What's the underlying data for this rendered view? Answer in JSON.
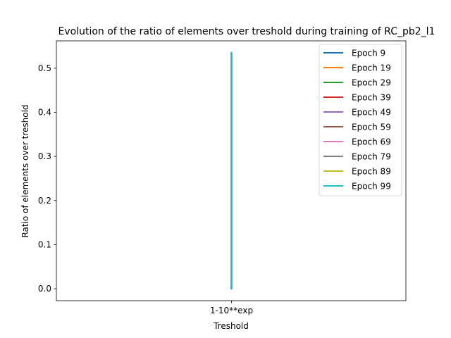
{
  "chart_data": {
    "type": "line",
    "title": "Evolution of the ratio of elements over treshold during training of RC_pb2_l1",
    "xlabel": "Treshold",
    "ylabel": "Ratio of elements over treshold",
    "categories": [
      "1-10**exp"
    ],
    "ylim": [
      -0.027,
      0.562
    ],
    "yticks": [
      0.0,
      0.1,
      0.2,
      0.3,
      0.4,
      0.5
    ],
    "ytick_labels": [
      "0.0",
      "0.1",
      "0.2",
      "0.3",
      "0.4",
      "0.5"
    ],
    "grid": false,
    "legend_position": "top-right",
    "series": [
      {
        "name": "Epoch 9",
        "color": "#1f77b4",
        "x": [
          "1-10**exp",
          "1-10**exp"
        ],
        "y": [
          0.0,
          0.535
        ]
      },
      {
        "name": "Epoch 19",
        "color": "#ff7f0e",
        "x": [
          "1-10**exp",
          "1-10**exp"
        ],
        "y": [
          0.0,
          0.535
        ]
      },
      {
        "name": "Epoch 29",
        "color": "#2ca02c",
        "x": [
          "1-10**exp",
          "1-10**exp"
        ],
        "y": [
          0.0,
          0.535
        ]
      },
      {
        "name": "Epoch 39",
        "color": "#d62728",
        "x": [
          "1-10**exp",
          "1-10**exp"
        ],
        "y": [
          0.0,
          0.535
        ]
      },
      {
        "name": "Epoch 49",
        "color": "#9467bd",
        "x": [
          "1-10**exp",
          "1-10**exp"
        ],
        "y": [
          0.0,
          0.535
        ]
      },
      {
        "name": "Epoch 59",
        "color": "#8c564b",
        "x": [
          "1-10**exp",
          "1-10**exp"
        ],
        "y": [
          0.0,
          0.535
        ]
      },
      {
        "name": "Epoch 69",
        "color": "#e377c2",
        "x": [
          "1-10**exp",
          "1-10**exp"
        ],
        "y": [
          0.0,
          0.535
        ]
      },
      {
        "name": "Epoch 79",
        "color": "#7f7f7f",
        "x": [
          "1-10**exp",
          "1-10**exp"
        ],
        "y": [
          0.0,
          0.535
        ]
      },
      {
        "name": "Epoch 89",
        "color": "#bcbd22",
        "x": [
          "1-10**exp",
          "1-10**exp"
        ],
        "y": [
          0.0,
          0.535
        ]
      },
      {
        "name": "Epoch 99",
        "color": "#17becf",
        "x": [
          "1-10**exp",
          "1-10**exp"
        ],
        "y": [
          0.0,
          0.535
        ]
      }
    ]
  }
}
